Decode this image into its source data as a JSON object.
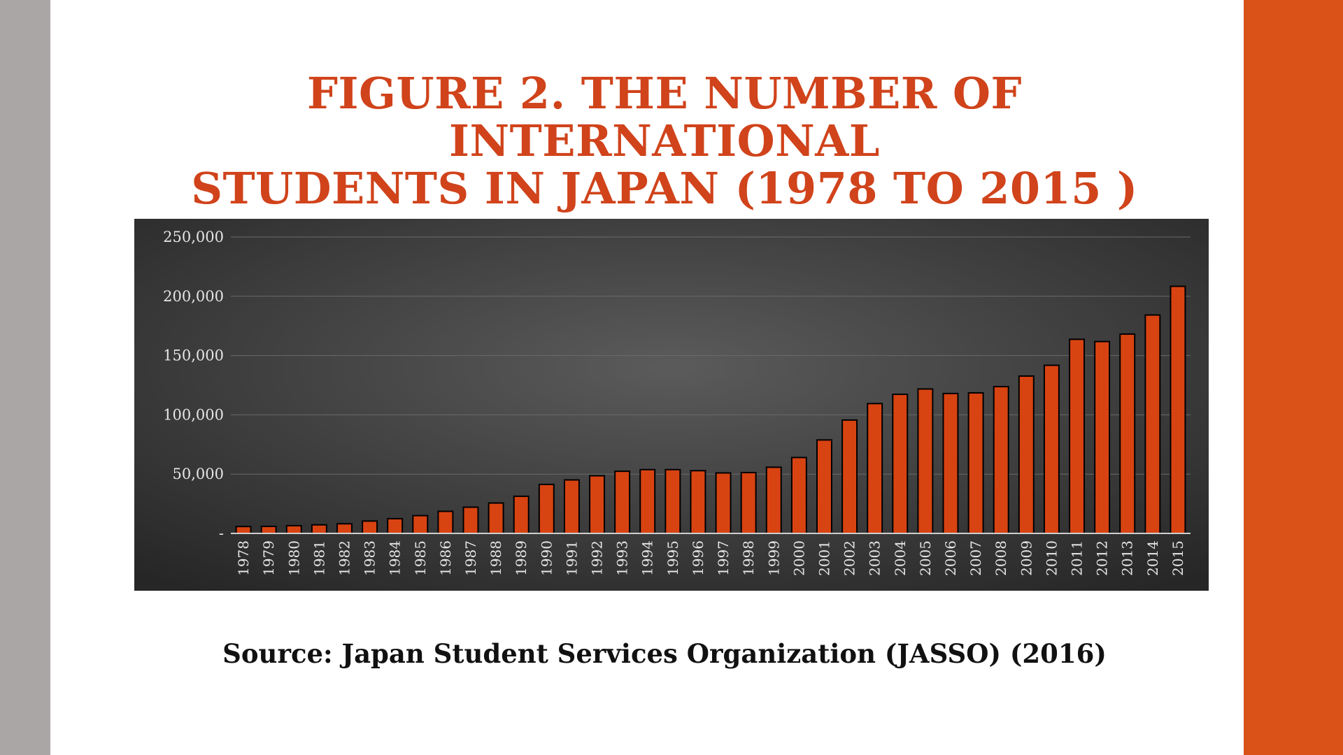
{
  "slide": {
    "title_line1": "FIGURE 2. THE NUMBER OF INTERNATIONAL",
    "title_line2": "STUDENTS IN JAPAN (1978 TO 2015 )",
    "source": "Source: Japan Student Services Organization (JASSO) (2016)"
  },
  "colors": {
    "accent": "#db5219",
    "title": "#d0431b",
    "bar_fill": "#d84312",
    "bar_stroke": "#000000",
    "left_strip": "#aaa6a6",
    "chart_bg_center": "#5b5b5b",
    "chart_bg_edge": "#262626"
  },
  "chart_data": {
    "type": "bar",
    "title": "",
    "xlabel": "",
    "ylabel": "",
    "ylim": [
      0,
      250000
    ],
    "grid": true,
    "legend": "none",
    "y_ticks": [
      {
        "value": 0,
        "label": "-"
      },
      {
        "value": 50000,
        "label": "50,000"
      },
      {
        "value": 100000,
        "label": "100,000"
      },
      {
        "value": 150000,
        "label": "150,000"
      },
      {
        "value": 200000,
        "label": "200,000"
      },
      {
        "value": 250000,
        "label": "250,000"
      }
    ],
    "categories": [
      "1978",
      "1979",
      "1980",
      "1981",
      "1982",
      "1983",
      "1984",
      "1985",
      "1986",
      "1987",
      "1988",
      "1989",
      "1990",
      "1991",
      "1992",
      "1993",
      "1994",
      "1995",
      "1996",
      "1997",
      "1998",
      "1999",
      "2000",
      "2001",
      "2002",
      "2003",
      "2004",
      "2005",
      "2006",
      "2007",
      "2008",
      "2009",
      "2010",
      "2011",
      "2012",
      "2013",
      "2014",
      "2015"
    ],
    "values": [
      5800,
      5900,
      6500,
      7200,
      8100,
      10400,
      12400,
      15000,
      18600,
      22100,
      25600,
      31300,
      41300,
      45100,
      48600,
      52400,
      53800,
      53800,
      52900,
      51000,
      51300,
      55800,
      64000,
      78800,
      95600,
      109500,
      117300,
      121800,
      118000,
      118500,
      123800,
      132700,
      141800,
      163700,
      161800,
      168100,
      184200,
      208400
    ]
  }
}
